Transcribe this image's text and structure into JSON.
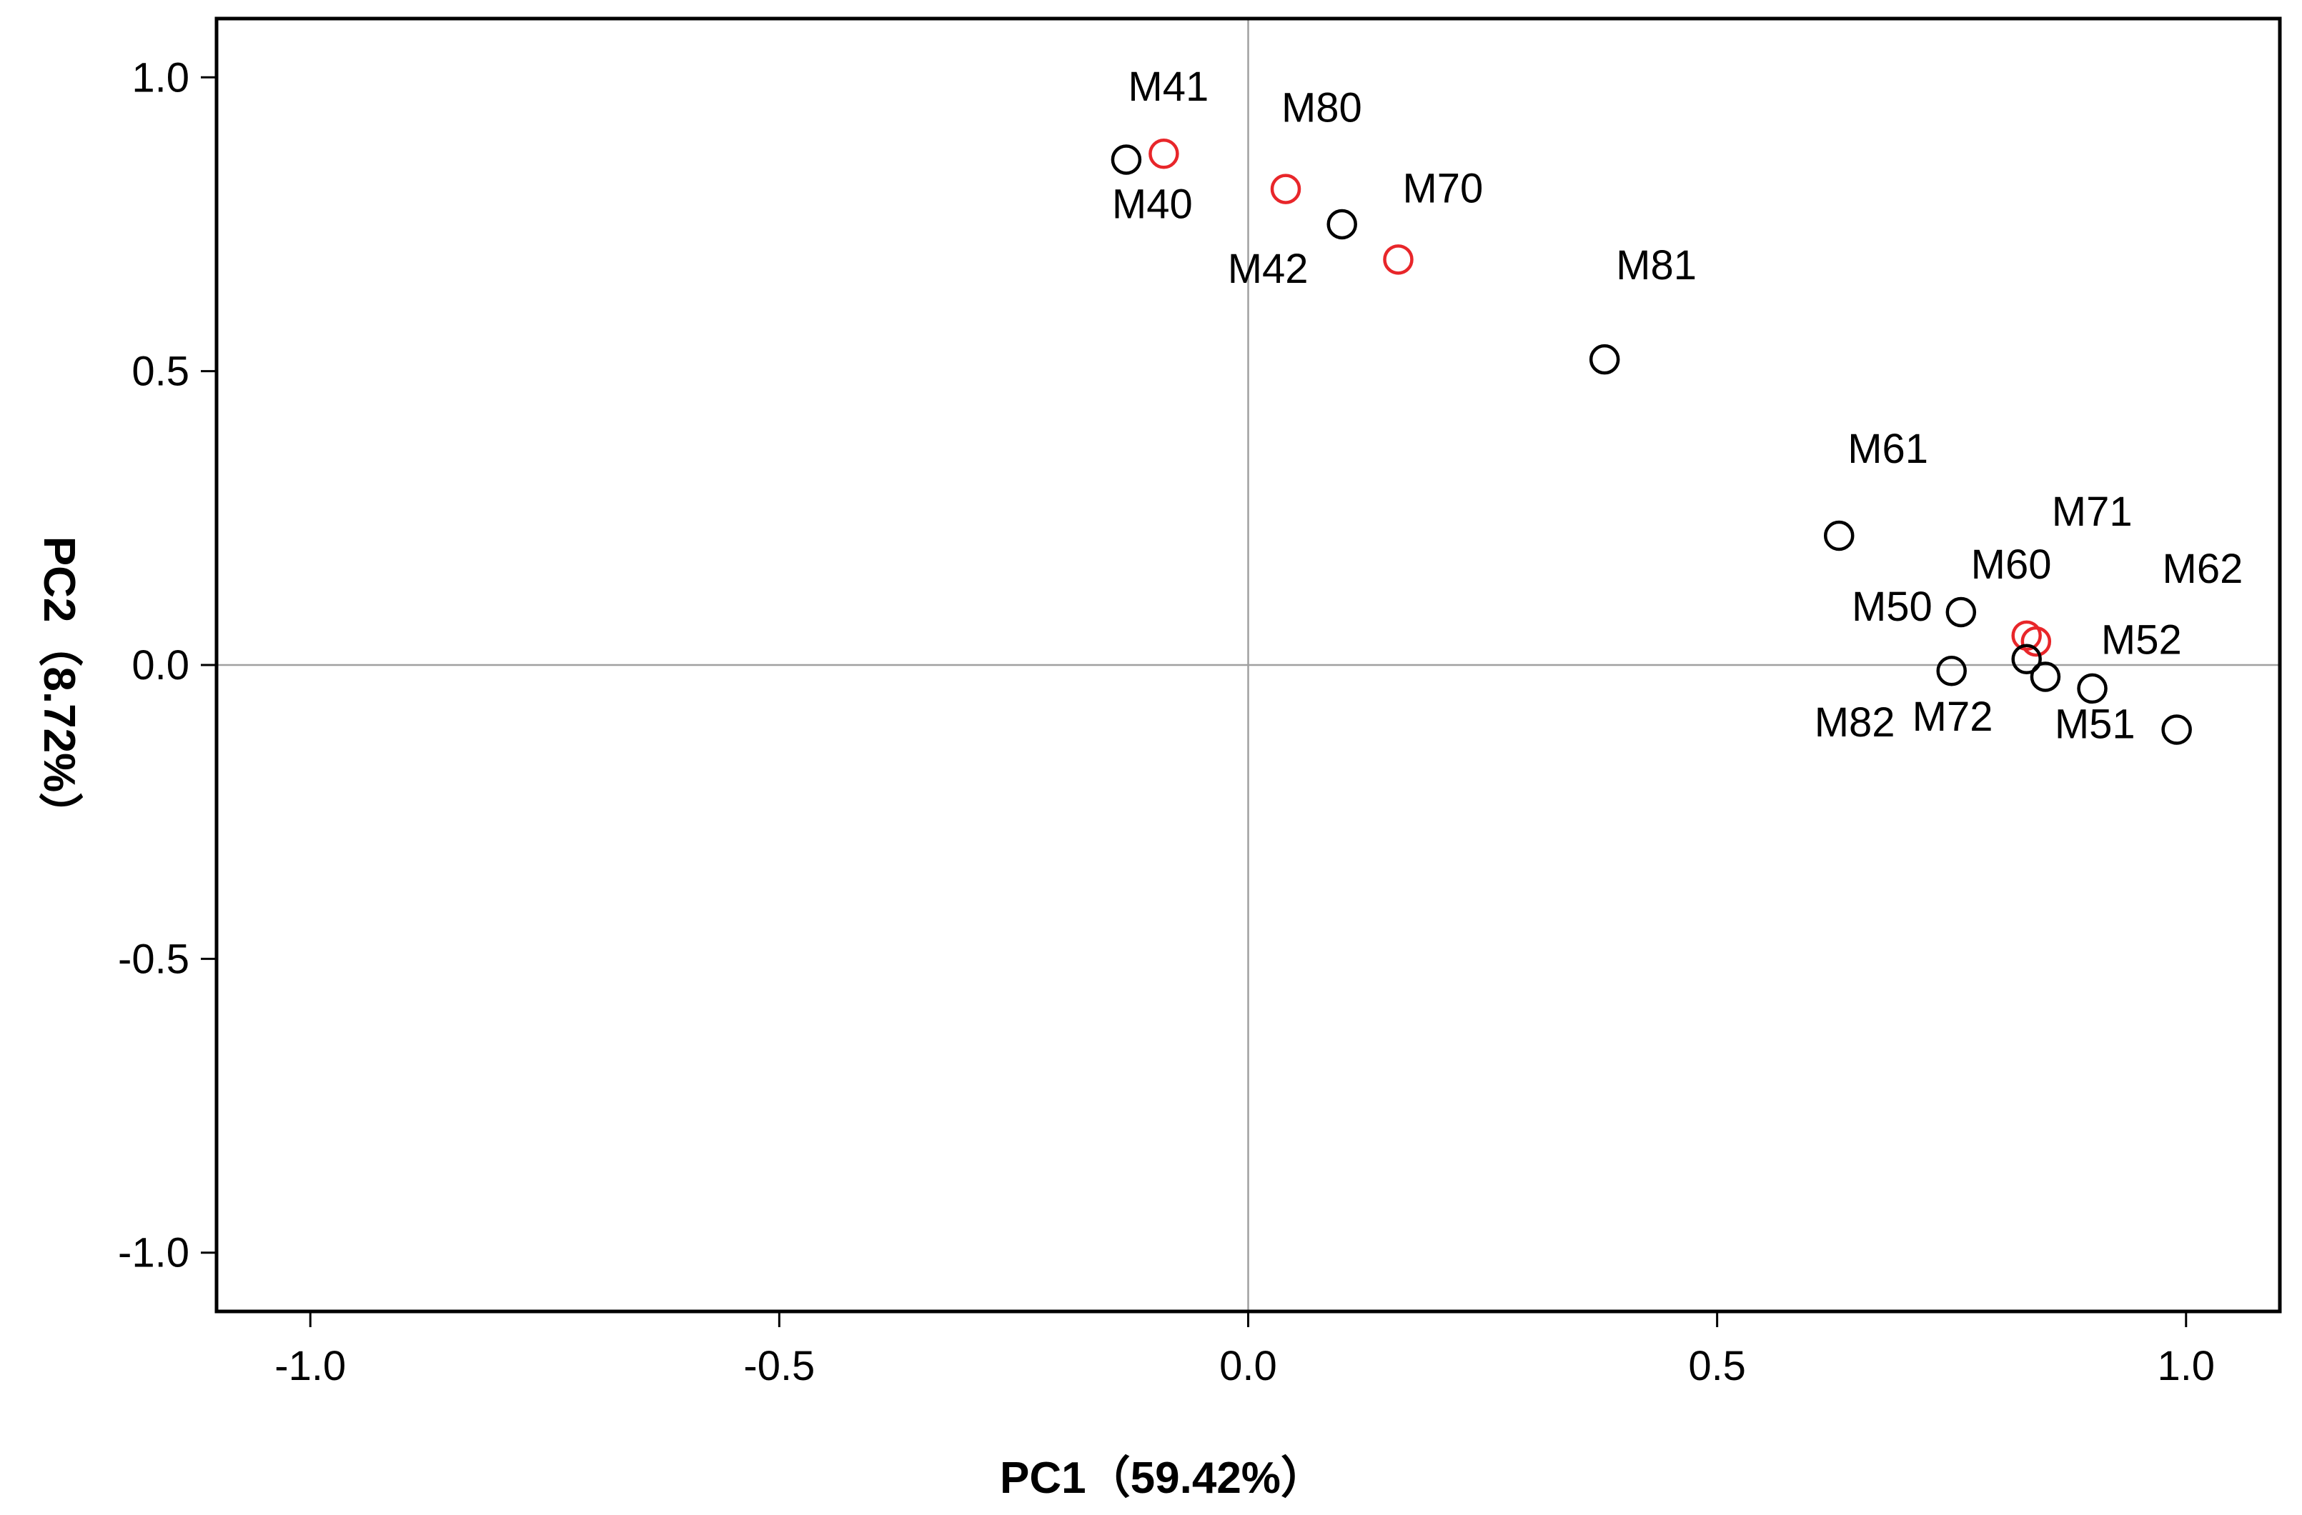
{
  "chart_data": {
    "type": "scatter",
    "title": "",
    "xlabel": "PC1（59.42%）",
    "ylabel": "PC2（8.72%）",
    "xlim": [
      -1.1,
      1.1
    ],
    "ylim": [
      -1.1,
      1.1
    ],
    "xticks": [
      -1.0,
      -0.5,
      0.0,
      0.5,
      1.0
    ],
    "yticks": [
      -1.0,
      -0.5,
      0.0,
      0.5,
      1.0
    ],
    "xtick_labels": [
      "-1.0",
      "-0.5",
      "0.0",
      "0.5",
      "1.0"
    ],
    "ytick_labels": [
      "-1.0",
      "-0.5",
      "0.0",
      "0.5",
      "1.0"
    ],
    "reference_lines": {
      "x": 0.0,
      "y": 0.0
    },
    "grid": false,
    "colors": {
      "black_series": "#000000",
      "red_series": "#e8262a",
      "reference_line": "#a0a0a0",
      "axis": "#000000"
    },
    "points": [
      {
        "label": "M40",
        "x": -0.13,
        "y": 0.86,
        "color": "black",
        "label_pos": "below"
      },
      {
        "label": "M41",
        "x": -0.09,
        "y": 0.87,
        "color": "red",
        "label_pos": "above"
      },
      {
        "label": "M80",
        "x": 0.04,
        "y": 0.81,
        "color": "red",
        "label_pos": "above-right"
      },
      {
        "label": "M42",
        "x": 0.1,
        "y": 0.75,
        "color": "black",
        "label_pos": "below-left"
      },
      {
        "label": "M70",
        "x": 0.16,
        "y": 0.69,
        "color": "red",
        "label_pos": "above-right"
      },
      {
        "label": "M81",
        "x": 0.38,
        "y": 0.52,
        "color": "black",
        "label_pos": "above-right"
      },
      {
        "label": "M61",
        "x": 0.63,
        "y": 0.22,
        "color": "black",
        "label_pos": "above-right"
      },
      {
        "label": "M50",
        "x": 0.76,
        "y": 0.09,
        "color": "black",
        "label_pos": "left"
      },
      {
        "label": "M60",
        "x": 0.83,
        "y": 0.05,
        "color": "red",
        "label_pos": "above"
      },
      {
        "label": "M71",
        "x": 0.84,
        "y": 0.04,
        "color": "red",
        "label_pos": "above-right"
      },
      {
        "label": "M82",
        "x": 0.75,
        "y": -0.01,
        "color": "black",
        "label_pos": "below-left"
      },
      {
        "label": "M72",
        "x": 0.83,
        "y": 0.01,
        "color": "black",
        "label_pos": "below-left"
      },
      {
        "label": "M52",
        "x": 0.85,
        "y": -0.02,
        "color": "black",
        "label_pos": "right"
      },
      {
        "label": "M62",
        "x": 0.9,
        "y": -0.04,
        "color": "black",
        "label_pos": "above-far-right"
      },
      {
        "label": "M51",
        "x": 0.99,
        "y": -0.11,
        "color": "black",
        "label_pos": "left"
      }
    ]
  }
}
